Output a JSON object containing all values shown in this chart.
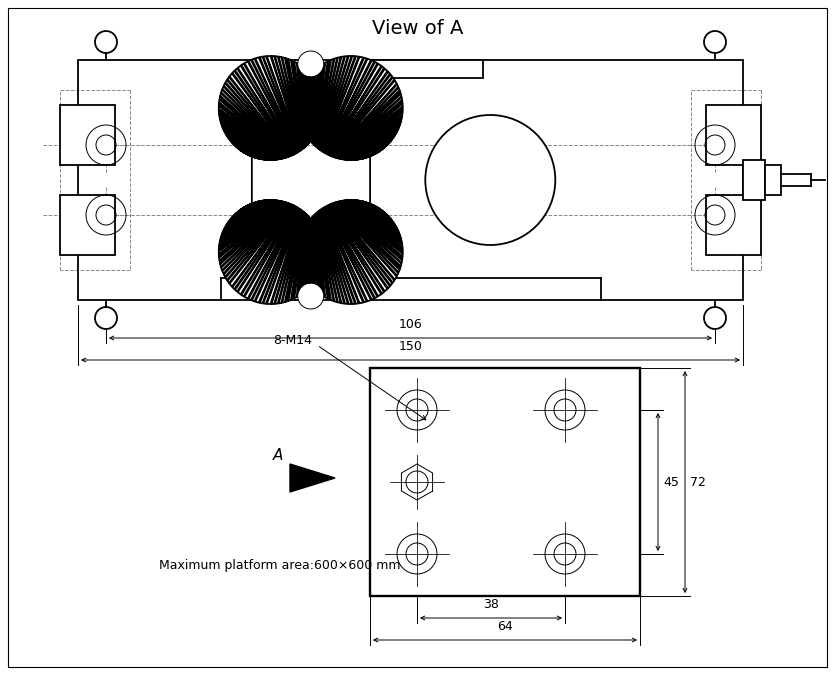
{
  "title": "View of A",
  "bg_color": "#ffffff",
  "line_color": "#000000",
  "dashed_color": "#888888",
  "annotations": {
    "view_title": "View of A",
    "dim_106": "106",
    "dim_150": "150",
    "dim_38": "38",
    "dim_64": "64",
    "dim_45": "45",
    "dim_72": "72",
    "label_8M14": "8-M14",
    "label_A": "A",
    "label_maxplatform": "Maximum platform area:600×600 mm"
  }
}
